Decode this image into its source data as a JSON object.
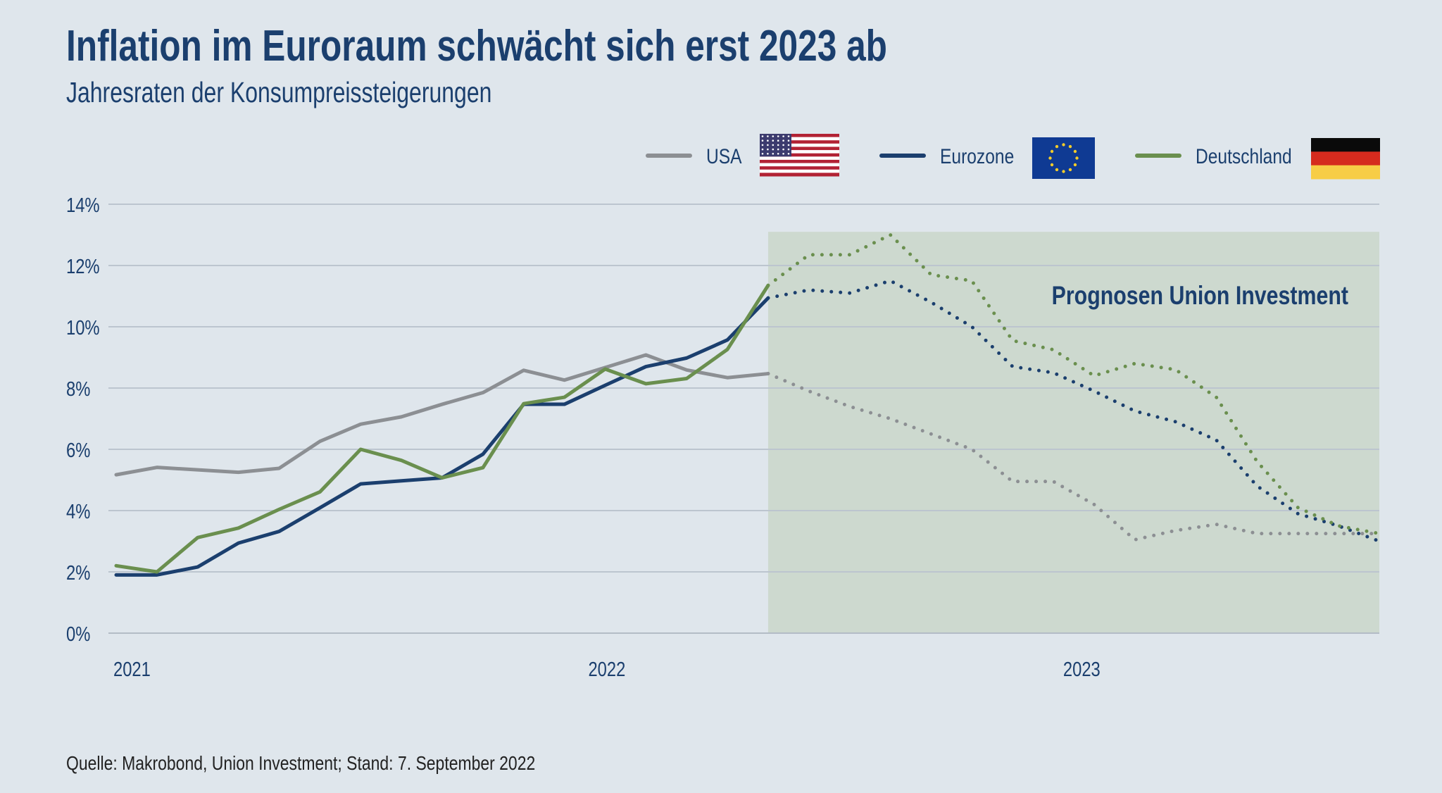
{
  "header": {
    "title": "Inflation im Euroraum schwächt sich erst 2023 ab",
    "subtitle": "Jahresraten der Konsumpreissteigerungen"
  },
  "footer": {
    "source": "Quelle: Makrobond, Union Investment; Stand: 7. September 2022"
  },
  "chart_data": {
    "type": "line",
    "title": "Inflation im Euroraum schwächt sich erst 2023 ab",
    "subtitle": "Jahresraten der Konsumpreissteigerungen",
    "x": [
      "2021-01",
      "2021-02",
      "2021-03",
      "2021-04",
      "2021-05",
      "2021-06",
      "2021-07",
      "2021-08",
      "2021-09",
      "2021-10",
      "2021-11",
      "2021-12",
      "2022-01",
      "2022-02",
      "2022-03",
      "2022-04",
      "2022-05",
      "2022-06",
      "2022-07",
      "2022-08",
      "2022-09",
      "2022-10",
      "2022-11",
      "2022-12",
      "2023-01",
      "2023-02",
      "2023-03",
      "2023-04",
      "2023-05",
      "2023-06",
      "2023-07",
      "2023-08"
    ],
    "forecast_start": "2022-05",
    "x_ticks": [
      {
        "x": "2021-01",
        "label": "2021"
      },
      {
        "x": "2022-01",
        "label": "2022"
      },
      {
        "x": "2023-01",
        "label": "2023"
      }
    ],
    "y_ticks": [
      0,
      2,
      4,
      6,
      8,
      10,
      12,
      14
    ],
    "y_tick_format": "%",
    "ylim": [
      0,
      14
    ],
    "grid": "horizontal",
    "legend_position": "top-right",
    "forecast_band": {
      "label": "Prognosen Union Investment",
      "y_top": 13.1,
      "color": "#cdd9cf"
    },
    "series": [
      {
        "name": "USA",
        "color": "#8c8f93",
        "flag": "usa-flag",
        "values": [
          5.17,
          5.41,
          5.33,
          5.25,
          5.38,
          6.26,
          6.82,
          7.06,
          7.47,
          7.85,
          8.58,
          8.26,
          8.67,
          9.08,
          8.59,
          8.34,
          8.47,
          7.9,
          7.4,
          7.0,
          6.5,
          6.0,
          4.95,
          4.95,
          4.2,
          3.05,
          3.35,
          3.55,
          3.25,
          3.25,
          3.25,
          3.25
        ]
      },
      {
        "name": "Eurozone",
        "color": "#1b3f6e",
        "flag": "eu-flag",
        "values": [
          1.9,
          1.9,
          2.16,
          2.94,
          3.32,
          4.09,
          4.87,
          4.97,
          5.07,
          5.84,
          7.47,
          7.47,
          8.09,
          8.7,
          8.98,
          9.57,
          10.94,
          11.2,
          11.1,
          11.5,
          10.8,
          10.0,
          8.7,
          8.5,
          7.9,
          7.25,
          6.9,
          6.3,
          4.8,
          3.9,
          3.5,
          3.0
        ]
      },
      {
        "name": "Deutschland",
        "color": "#6a8f4e",
        "flag": "germany-flag",
        "values": [
          2.2,
          2.0,
          3.12,
          3.43,
          4.04,
          4.61,
          6.0,
          5.64,
          5.07,
          5.4,
          7.49,
          7.7,
          8.62,
          8.14,
          8.31,
          9.26,
          11.35,
          12.35,
          12.35,
          13.0,
          11.7,
          11.5,
          9.55,
          9.25,
          8.4,
          8.8,
          8.6,
          7.7,
          5.6,
          4.1,
          3.5,
          3.25
        ]
      }
    ]
  }
}
